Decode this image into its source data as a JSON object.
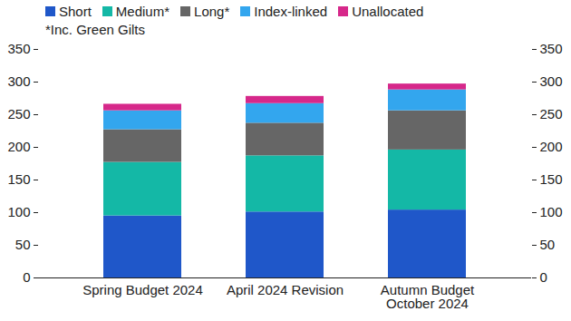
{
  "chart_data": {
    "type": "bar",
    "stacked": true,
    "legend": "top-left",
    "annotations": [
      "*Inc. Green Gilts"
    ],
    "categories": [
      "Spring Budget 2024",
      "April 2024 Revision",
      "Autumn Budget\nOctober 2024"
    ],
    "series": [
      {
        "name": "Short",
        "color": "#1f57c9",
        "values": [
          95,
          101,
          104
        ]
      },
      {
        "name": "Medium*",
        "color": "#14b8a6",
        "values": [
          82,
          86,
          92
        ]
      },
      {
        "name": "Long*",
        "color": "#666666",
        "values": [
          50,
          50,
          60
        ]
      },
      {
        "name": "Index-linked",
        "color": "#33a6ee",
        "values": [
          29,
          30,
          32
        ]
      },
      {
        "name": "Unallocated",
        "color": "#d6288a",
        "values": [
          10,
          11,
          9
        ]
      }
    ],
    "ylim": [
      0,
      350
    ],
    "yticks": [
      0,
      50,
      100,
      150,
      200,
      250,
      300,
      350
    ],
    "y2lim": [
      0,
      350
    ],
    "y2ticks": [
      0,
      50,
      100,
      150,
      200,
      250,
      300,
      350
    ]
  }
}
